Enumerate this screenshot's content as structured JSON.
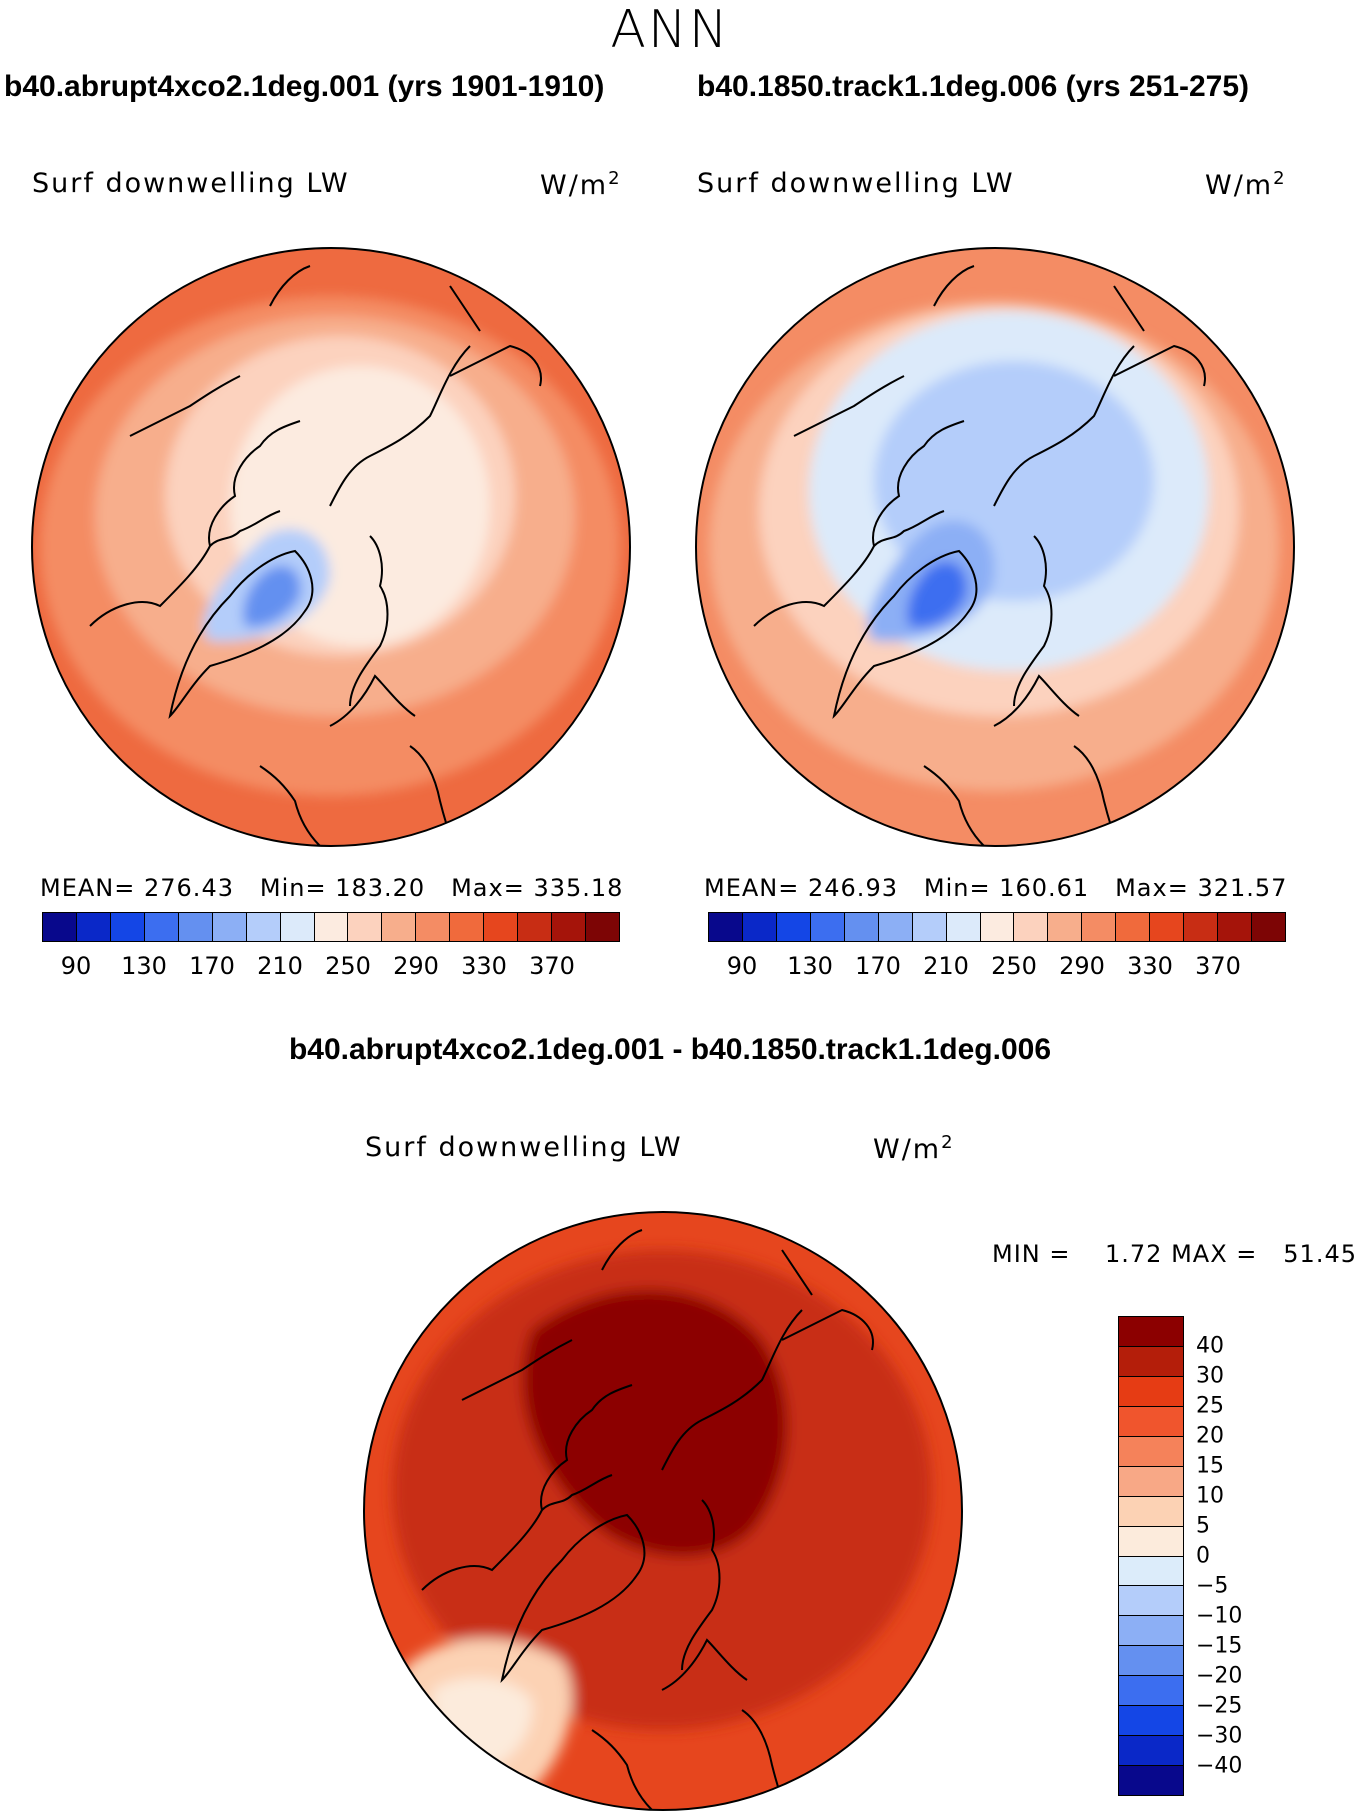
{
  "season": "ANN",
  "panels": [
    {
      "case_title": "b40.abrupt4xco2.1deg.001 (yrs 1901-1910)",
      "variable": "Surf downwelling LW",
      "units_base": "W/m",
      "units_exp": "2",
      "stats": {
        "mean_label": "MEAN=",
        "mean": "276.43",
        "min_label": "Min=",
        "min": "183.20",
        "max_label": "Max=",
        "max": "335.18"
      }
    },
    {
      "case_title": "b40.1850.track1.1deg.006 (yrs 251-275)",
      "variable": "Surf downwelling LW",
      "units_base": "W/m",
      "units_exp": "2",
      "stats": {
        "mean_label": "MEAN=",
        "mean": "246.93",
        "min_label": "Min=",
        "min": "160.61",
        "max_label": "Max=",
        "max": "321.57"
      }
    }
  ],
  "difference": {
    "title": "b40.abrupt4xco2.1deg.001 - b40.1850.track1.1deg.006",
    "variable": "Surf downwelling LW",
    "units_base": "W/m",
    "units_exp": "2",
    "min_label": "MIN =",
    "min": "1.72",
    "max_label": "MAX =",
    "max": "51.45"
  },
  "colorbar_main": {
    "colors": [
      "#08088c",
      "#0a28c8",
      "#1446e6",
      "#3c6ef0",
      "#6490f0",
      "#8caff5",
      "#b4cdfa",
      "#dceafa",
      "#fcebe0",
      "#fcd2be",
      "#f7ae8c",
      "#f48c64",
      "#f06a3c",
      "#e6461e",
      "#c82d14",
      "#a5140a",
      "#7d0505"
    ],
    "ticks": [
      "90",
      "130",
      "170",
      "210",
      "250",
      "290",
      "330",
      "370"
    ]
  },
  "colorbar_diff": {
    "colors": [
      "#8c0000",
      "#b41e0a",
      "#e63c14",
      "#f0552d",
      "#f5825a",
      "#f8a886",
      "#fcd2b4",
      "#fcebdc",
      "#dcecfa",
      "#b4cdfa",
      "#8caff5",
      "#6490f0",
      "#3c6ef0",
      "#1446e6",
      "#0a28c8",
      "#08088c"
    ],
    "ticks": [
      "40",
      "30",
      "25",
      "20",
      "15",
      "10",
      "5",
      "0",
      "−5",
      "−10",
      "−15",
      "−20",
      "−25",
      "−30",
      "−40"
    ]
  },
  "map_colors": {
    "panel1": {
      "outer": "#ee6a40",
      "ring2": "#f48c64",
      "ring3": "#f7ae8c",
      "ring4": "#fcd2be",
      "inner": "#fcebe0",
      "greenland": "#b4cdfa",
      "greenland_core": "#6490f0"
    },
    "panel2": {
      "outer": "#f48c64",
      "ring2": "#f7ae8c",
      "ring3": "#fcd2be",
      "inner": "#dceafa",
      "core": "#b4cdfa",
      "greenland": "#8caff5",
      "greenland_core": "#3c6ef0"
    },
    "diff": {
      "outer": "#e6461e",
      "ring2": "#c82d14",
      "inner": "#8c0000",
      "atlantic": "#fcd2b4",
      "atlantic_core": "#fcebdc"
    }
  }
}
